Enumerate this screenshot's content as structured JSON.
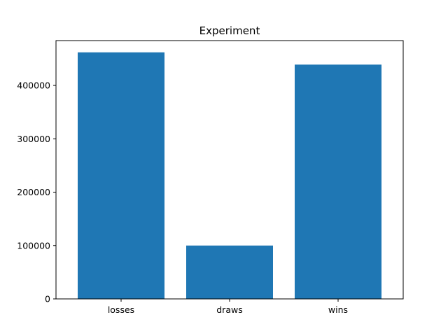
{
  "chart_data": {
    "type": "bar",
    "title": "Experiment",
    "xlabel": "",
    "ylabel": "",
    "categories": [
      "losses",
      "draws",
      "wins"
    ],
    "values": [
      462000,
      100000,
      439000
    ],
    "ylim": [
      0,
      484000
    ],
    "yticks": [
      0,
      100000,
      200000,
      300000,
      400000
    ],
    "ytick_labels": [
      "0",
      "100000",
      "200000",
      "300000",
      "400000"
    ],
    "grid": false,
    "legend": "none",
    "colors": {
      "bar": "#1f77b4",
      "axis": "#000000",
      "background": "#ffffff"
    }
  }
}
